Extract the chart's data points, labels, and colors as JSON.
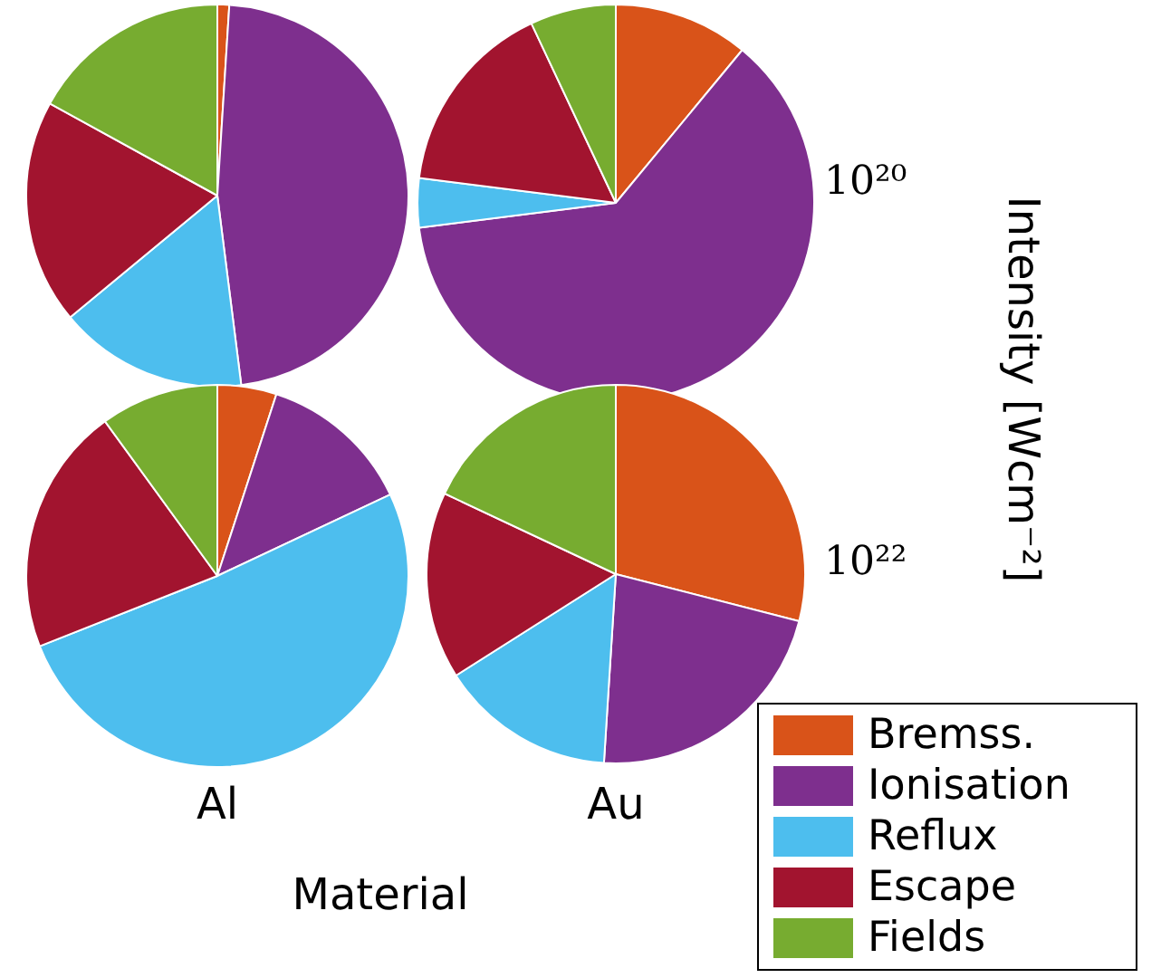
{
  "chart_data": [
    {
      "type": "pie",
      "categories": [
        null,
        null,
        null,
        null,
        null
      ],
      "values": [
        1,
        47,
        16,
        19,
        17
      ],
      "colors": [
        "#d95319",
        "#7e2f8e",
        "#4dbeee",
        "#a2142f",
        "#77ac30"
      ]
    },
    {
      "type": "pie",
      "categories": [
        null,
        null,
        null,
        null,
        null
      ],
      "values": [
        11,
        62,
        4,
        16,
        7
      ],
      "colors": [
        "#d95319",
        "#7e2f8e",
        "#4dbeee",
        "#a2142f",
        "#77ac30"
      ],
      "y2label": "10²⁰"
    },
    {
      "type": "pie",
      "categories": [
        null,
        null,
        null,
        null,
        null
      ],
      "values": [
        5,
        13,
        51,
        21,
        10
      ],
      "colors": [
        "#d95319",
        "#7e2f8e",
        "#4dbeee",
        "#a2142f",
        "#77ac30"
      ],
      "xlabel": "Al",
      "annotations": [
        "Material"
      ]
    },
    {
      "type": "pie",
      "categories": [
        "Bremss.",
        "Ionisation",
        "Reflux",
        "Escape",
        "Fields"
      ],
      "values": [
        29,
        22,
        15,
        16,
        18
      ],
      "colors": [
        "#d95319",
        "#7e2f8e",
        "#4dbeee",
        "#a2142f",
        "#77ac30"
      ],
      "xlabel": "Au",
      "y2label": "10²²",
      "annotations": [
        "Intensity [Wcm⁻²]"
      ],
      "legend": "bottom right"
    }
  ]
}
